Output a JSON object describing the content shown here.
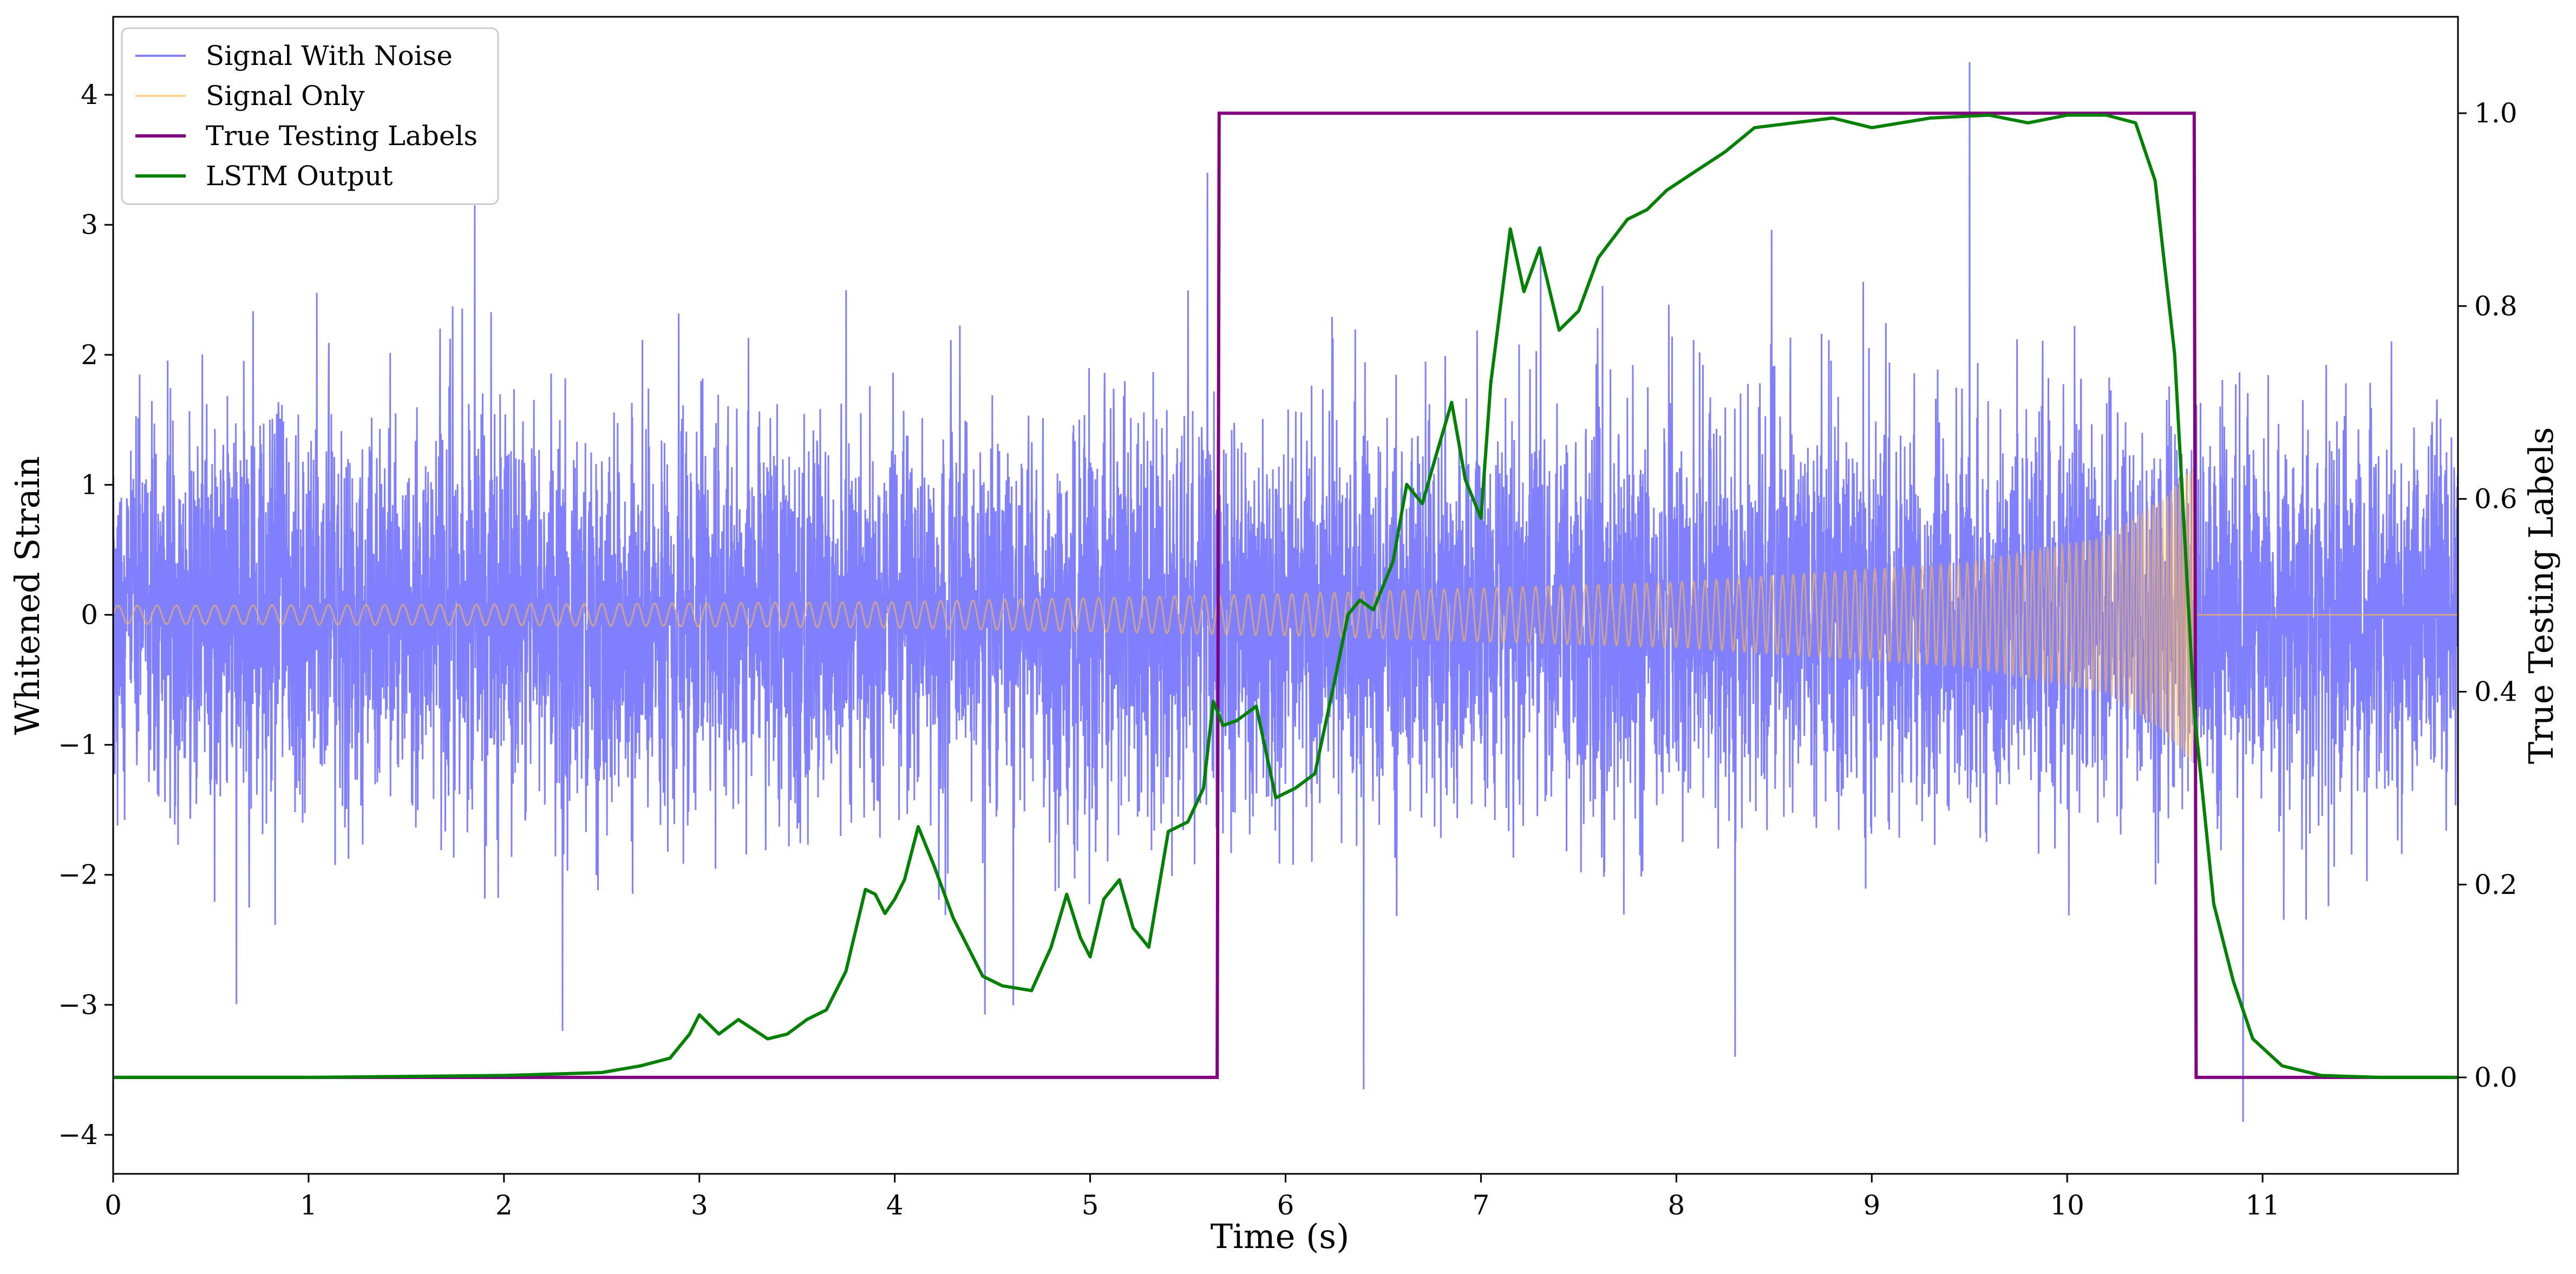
{
  "chart_data": {
    "type": "line",
    "title": "",
    "xlabel": "Time (s)",
    "ylabel": "Whitened Strain",
    "y2label": "True Testing Labels",
    "xlim": [
      0,
      12
    ],
    "ylim": [
      -4.3,
      4.6
    ],
    "y2lim": [
      -0.1,
      1.1
    ],
    "x_ticks": [
      0,
      1,
      2,
      3,
      4,
      5,
      6,
      7,
      8,
      9,
      10,
      11
    ],
    "x_tick_labels": [
      "0",
      "1",
      "2",
      "3",
      "4",
      "5",
      "6",
      "7",
      "8",
      "9",
      "10",
      "11"
    ],
    "y_ticks": [
      -4,
      -3,
      -2,
      -1,
      0,
      1,
      2,
      3,
      4
    ],
    "y_tick_labels": [
      "−4",
      "−3",
      "−2",
      "−1",
      "0",
      "1",
      "2",
      "3",
      "4"
    ],
    "y2_ticks": [
      0.0,
      0.2,
      0.4,
      0.6,
      0.8,
      1.0
    ],
    "y2_tick_labels": [
      "0.0",
      "0.2",
      "0.4",
      "0.6",
      "0.8",
      "1.0"
    ],
    "grid": false,
    "legend_position": "upper-left",
    "series": [
      {
        "name": "Signal With Noise",
        "axis": "left",
        "color": "#8080ff",
        "style": "noise",
        "sigma": 0.75,
        "extremes": [
          [
            1.85,
            3.15
          ],
          [
            5.6,
            3.4
          ],
          [
            9.5,
            4.25
          ],
          [
            6.4,
            -3.65
          ],
          [
            8.3,
            -3.4
          ],
          [
            10.9,
            -3.9
          ],
          [
            2.3,
            -3.2
          ]
        ]
      },
      {
        "name": "Signal Only",
        "axis": "left",
        "color": "#ffb84d",
        "style": "chirp",
        "t_end": 10.65,
        "amp_points": [
          [
            0,
            0.07
          ],
          [
            2,
            0.08
          ],
          [
            4,
            0.1
          ],
          [
            6,
            0.16
          ],
          [
            8,
            0.25
          ],
          [
            9.5,
            0.4
          ],
          [
            10.2,
            0.6
          ],
          [
            10.5,
            0.9
          ],
          [
            10.65,
            1.15
          ]
        ],
        "after_value": 0
      },
      {
        "name": "True Testing Labels",
        "axis": "right",
        "color": "#800080",
        "x": [
          0,
          5.65,
          5.66,
          10.65,
          10.66,
          12
        ],
        "values": [
          0,
          0,
          1,
          1,
          0,
          0
        ]
      },
      {
        "name": "LSTM Output",
        "axis": "right",
        "color": "#008000",
        "x": [
          0,
          1,
          2,
          2.5,
          2.7,
          2.85,
          2.95,
          3.0,
          3.1,
          3.2,
          3.35,
          3.45,
          3.55,
          3.65,
          3.75,
          3.85,
          3.9,
          3.95,
          4.0,
          4.05,
          4.12,
          4.2,
          4.3,
          4.45,
          4.55,
          4.7,
          4.8,
          4.88,
          4.95,
          5.0,
          5.07,
          5.15,
          5.22,
          5.3,
          5.4,
          5.5,
          5.58,
          5.63,
          5.68,
          5.75,
          5.85,
          5.95,
          6.05,
          6.15,
          6.25,
          6.32,
          6.38,
          6.45,
          6.55,
          6.62,
          6.7,
          6.77,
          6.85,
          6.92,
          7.0,
          7.05,
          7.15,
          7.22,
          7.3,
          7.4,
          7.5,
          7.6,
          7.75,
          7.85,
          7.95,
          8.1,
          8.25,
          8.4,
          8.6,
          8.8,
          9.0,
          9.3,
          9.6,
          9.8,
          10.0,
          10.2,
          10.35,
          10.45,
          10.55,
          10.65,
          10.75,
          10.85,
          10.95,
          11.1,
          11.3,
          11.6,
          12.0
        ],
        "values": [
          0.0,
          0.0,
          0.002,
          0.005,
          0.012,
          0.02,
          0.045,
          0.065,
          0.045,
          0.06,
          0.04,
          0.045,
          0.06,
          0.07,
          0.11,
          0.195,
          0.19,
          0.17,
          0.185,
          0.205,
          0.26,
          0.22,
          0.165,
          0.105,
          0.095,
          0.09,
          0.135,
          0.19,
          0.145,
          0.125,
          0.185,
          0.205,
          0.155,
          0.135,
          0.255,
          0.265,
          0.3,
          0.39,
          0.365,
          0.37,
          0.385,
          0.29,
          0.3,
          0.315,
          0.41,
          0.48,
          0.495,
          0.485,
          0.535,
          0.615,
          0.595,
          0.645,
          0.7,
          0.62,
          0.58,
          0.72,
          0.88,
          0.815,
          0.86,
          0.775,
          0.795,
          0.85,
          0.89,
          0.9,
          0.92,
          0.94,
          0.96,
          0.985,
          0.99,
          0.995,
          0.985,
          0.995,
          0.998,
          0.99,
          0.998,
          0.998,
          0.99,
          0.93,
          0.75,
          0.38,
          0.18,
          0.1,
          0.04,
          0.012,
          0.002,
          0.0,
          0.0
        ]
      }
    ]
  }
}
